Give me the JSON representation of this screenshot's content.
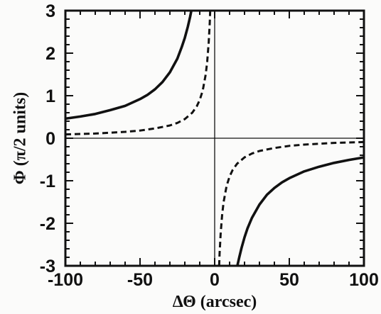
{
  "chart_data": {
    "type": "line",
    "xlabel": "ΔΘ (arcsec)",
    "ylabel": "Φ (π/2 units)",
    "xlim": [
      -100,
      100
    ],
    "ylim": [
      -3,
      3
    ],
    "xticks": [
      -100,
      -50,
      0,
      50,
      100
    ],
    "yticks": [
      3,
      2,
      1,
      0,
      -1,
      -2,
      -3
    ],
    "xtick_labels": [
      "-100",
      "-50",
      "0",
      "50",
      "100"
    ],
    "ytick_labels": [
      "3",
      "2",
      "1",
      "0",
      "-1",
      "-2",
      "-3"
    ],
    "reference_lines": {
      "x": 0,
      "y": 0
    },
    "grid": false,
    "legend": "none",
    "series": [
      {
        "style": "solid",
        "color": "#111111",
        "points": [
          [
            -100,
            0.46
          ],
          [
            -90,
            0.51
          ],
          [
            -80,
            0.57
          ],
          [
            -70,
            0.66
          ],
          [
            -60,
            0.76
          ],
          [
            -50,
            0.92
          ],
          [
            -45,
            1.02
          ],
          [
            -40,
            1.15
          ],
          [
            -35,
            1.32
          ],
          [
            -30,
            1.55
          ],
          [
            -25,
            1.87
          ],
          [
            -22,
            2.15
          ],
          [
            -20,
            2.36
          ],
          [
            -18,
            2.62
          ],
          [
            -16.5,
            2.85
          ],
          [
            -15.6,
            3.0
          ]
        ],
        "points_b": [
          [
            15.2,
            -3.0
          ],
          [
            16.5,
            -2.8
          ],
          [
            18,
            -2.58
          ],
          [
            20,
            -2.33
          ],
          [
            22,
            -2.12
          ],
          [
            25,
            -1.87
          ],
          [
            30,
            -1.56
          ],
          [
            35,
            -1.33
          ],
          [
            40,
            -1.17
          ],
          [
            45,
            -1.04
          ],
          [
            50,
            -0.94
          ],
          [
            60,
            -0.78
          ],
          [
            70,
            -0.67
          ],
          [
            80,
            -0.58
          ],
          [
            90,
            -0.51
          ],
          [
            100,
            -0.45
          ]
        ]
      },
      {
        "style": "dashed",
        "color": "#111111",
        "points": [
          [
            -100,
            0.09
          ],
          [
            -80,
            0.11
          ],
          [
            -60,
            0.15
          ],
          [
            -50,
            0.18
          ],
          [
            -40,
            0.23
          ],
          [
            -30,
            0.3
          ],
          [
            -25,
            0.36
          ],
          [
            -20,
            0.45
          ],
          [
            -15,
            0.6
          ],
          [
            -12,
            0.75
          ],
          [
            -10,
            0.9
          ],
          [
            -8,
            1.12
          ],
          [
            -6,
            1.5
          ],
          [
            -5,
            1.8
          ],
          [
            -4,
            2.25
          ],
          [
            -3.3,
            2.72
          ],
          [
            -3.0,
            3.0
          ]
        ],
        "points_b": [
          [
            3.0,
            -3.0
          ],
          [
            3.3,
            -2.72
          ],
          [
            4,
            -2.25
          ],
          [
            5,
            -1.8
          ],
          [
            6,
            -1.5
          ],
          [
            8,
            -1.12
          ],
          [
            10,
            -0.9
          ],
          [
            12,
            -0.75
          ],
          [
            15,
            -0.6
          ],
          [
            20,
            -0.45
          ],
          [
            25,
            -0.36
          ],
          [
            30,
            -0.3
          ],
          [
            40,
            -0.23
          ],
          [
            50,
            -0.18
          ],
          [
            60,
            -0.15
          ],
          [
            80,
            -0.11
          ],
          [
            100,
            -0.09
          ]
        ]
      }
    ]
  }
}
